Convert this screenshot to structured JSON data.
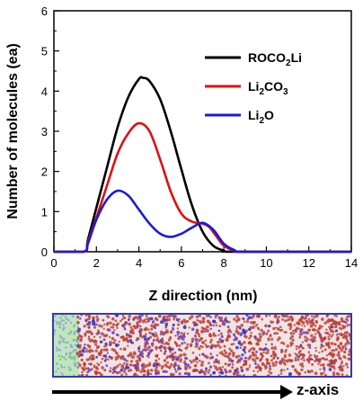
{
  "chart_data": {
    "type": "line",
    "xlabel": "Z direction (nm)",
    "ylabel": "Number of molecules (ea)",
    "xlim": [
      0,
      14
    ],
    "ylim": [
      0,
      6
    ],
    "xticks": [
      0,
      2,
      4,
      6,
      8,
      10,
      12,
      14
    ],
    "yticks": [
      0,
      1,
      2,
      3,
      4,
      5,
      6
    ],
    "grid": false,
    "legend_position": "top-right",
    "series": [
      {
        "name": "ROCO2Li",
        "label_main": "ROCO",
        "label_sub": "2",
        "label_tail": "Li",
        "color": "#000000",
        "x": [
          0,
          1.4,
          1.6,
          2.0,
          2.5,
          3.0,
          3.5,
          4.0,
          4.2,
          4.5,
          5.0,
          5.5,
          6.0,
          6.5,
          7.0,
          7.5,
          8.0,
          8.5,
          14
        ],
        "y": [
          0,
          0,
          0.3,
          1.1,
          2.1,
          3.1,
          3.85,
          4.3,
          4.33,
          4.25,
          3.8,
          3.0,
          2.05,
          1.15,
          0.5,
          0.15,
          0.03,
          0,
          0
        ]
      },
      {
        "name": "Li2CO3",
        "label_main": "Li",
        "label_sub": "2",
        "label_tail": "CO",
        "label_sub2": "3",
        "color": "#dd1111",
        "x": [
          0,
          1.4,
          1.6,
          2.0,
          2.5,
          3.0,
          3.5,
          4.0,
          4.5,
          5.0,
          5.5,
          6.0,
          6.5,
          7.0,
          7.3,
          7.6,
          8.0,
          8.5,
          9.0,
          14
        ],
        "y": [
          0,
          0,
          0.25,
          0.85,
          1.65,
          2.45,
          2.95,
          3.2,
          3.0,
          2.3,
          1.5,
          0.95,
          0.75,
          0.7,
          0.62,
          0.42,
          0.15,
          0.03,
          0,
          0
        ]
      },
      {
        "name": "Li2O",
        "label_main": "Li",
        "label_sub": "2",
        "label_tail": "O",
        "color": "#1a1adc",
        "x": [
          0,
          1.4,
          1.6,
          2.0,
          2.5,
          3.0,
          3.5,
          4.0,
          4.5,
          5.0,
          5.5,
          6.0,
          6.5,
          7.0,
          7.5,
          8.0,
          8.5,
          9.0,
          14
        ],
        "y": [
          0,
          0,
          0.2,
          0.8,
          1.3,
          1.52,
          1.4,
          1.05,
          0.7,
          0.45,
          0.37,
          0.45,
          0.6,
          0.72,
          0.55,
          0.2,
          0.04,
          0,
          0
        ]
      }
    ]
  },
  "bottom_arrow": {
    "label": "z-axis"
  }
}
